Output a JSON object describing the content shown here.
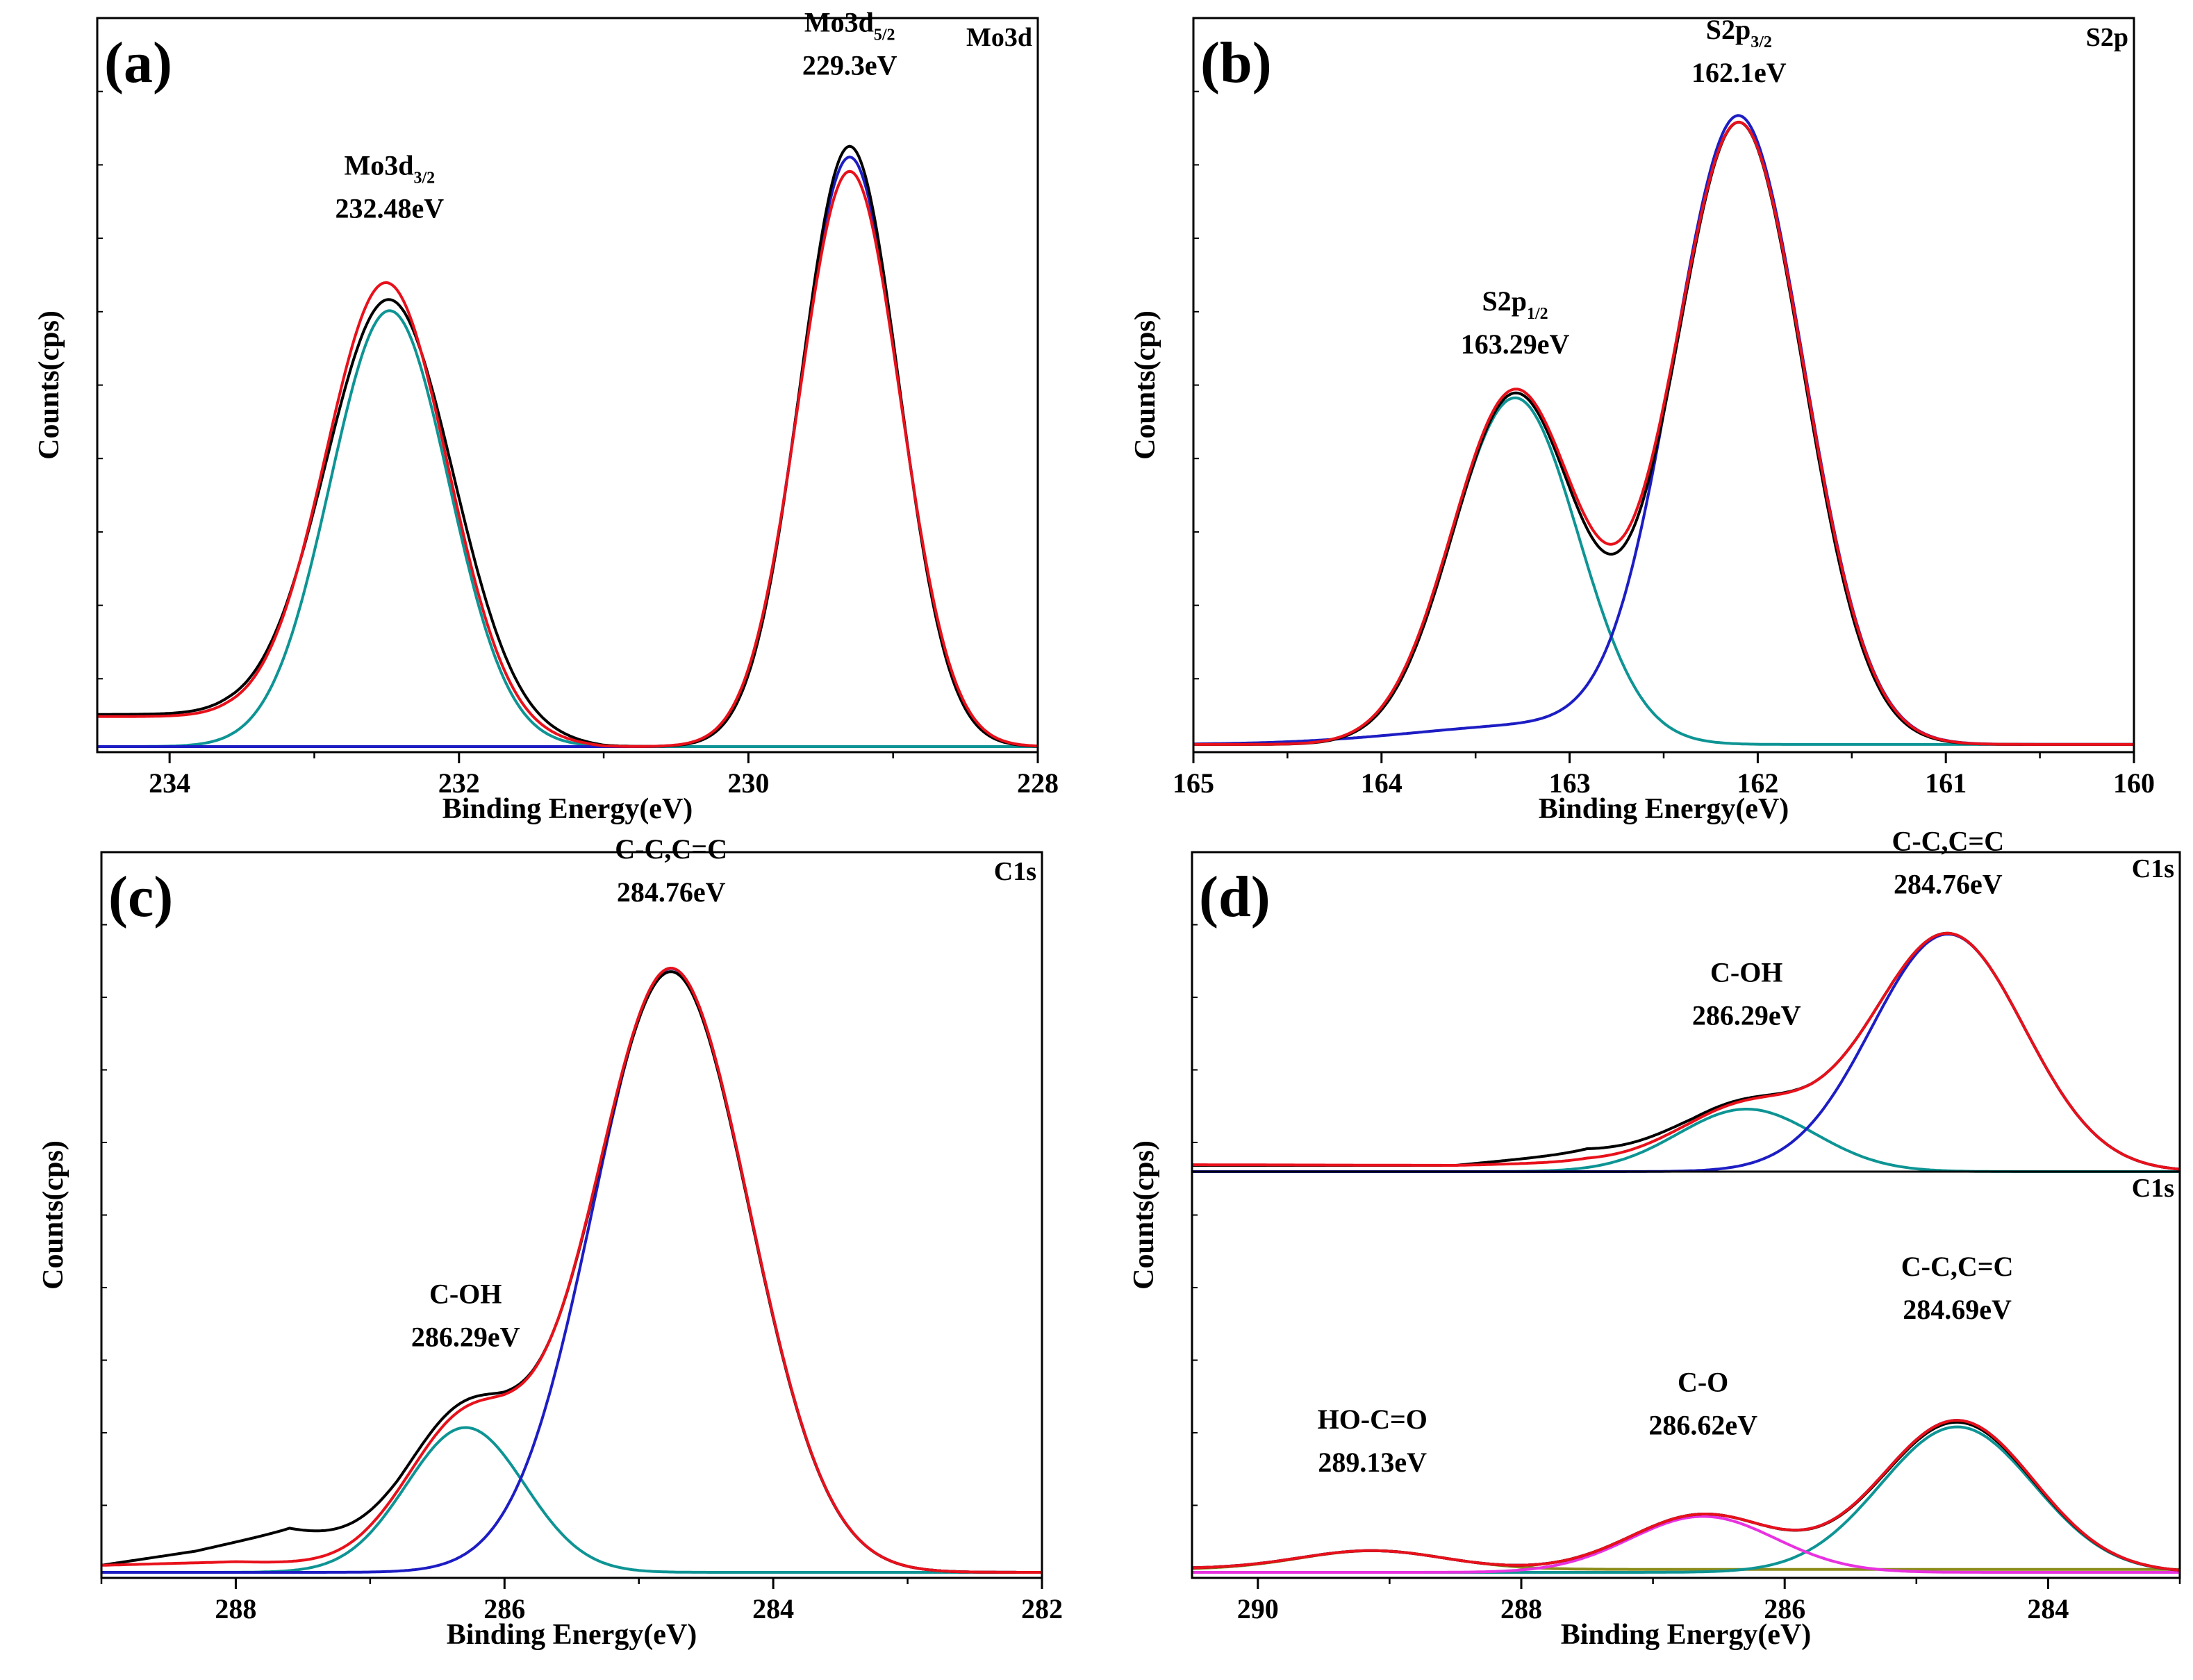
{
  "colors": {
    "measured": "#000000",
    "envelope": "#e8111b",
    "peak_a": "#1d1dc4",
    "peak_b": "#0e9494",
    "peak_c": "#e832e0",
    "baseline": "#8c8c1a"
  },
  "chart_data": [
    {
      "type": "line",
      "panel": "(a)",
      "corner_label": "Mo3d",
      "xlabel": "Binding Energy(eV)",
      "ylabel": "Counts(cps)",
      "xlim": [
        234.5,
        228
      ],
      "x_ticks": [
        "234",
        "232",
        "230",
        "228"
      ],
      "x_tick_values": [
        234,
        232,
        230,
        228
      ],
      "ylim": [
        0,
        1.0
      ],
      "annotations": [
        {
          "line1": "Mo3d",
          "sub": "3/2",
          "line2": "232.48eV",
          "x": 232.48,
          "y": 0.74
        },
        {
          "line1": "Mo3d",
          "sub": "5/2",
          "line2": "229.3eV",
          "x": 229.3,
          "y": 0.94
        }
      ],
      "series": [
        {
          "role": "measured",
          "peaks": [
            {
              "c": 232.48,
              "h": 0.6,
              "w": 0.44
            },
            {
              "c": 229.3,
              "h": 0.84,
              "w": 0.34
            }
          ],
          "baseline": [
            [
              234.5,
              0.045
            ],
            [
              233.6,
              0.045
            ],
            [
              231.0,
              0.0
            ],
            [
              228,
              0.0
            ]
          ]
        },
        {
          "role": "envelope",
          "peaks": [
            {
              "c": 232.5,
              "h": 0.625,
              "w": 0.42
            },
            {
              "c": 229.3,
              "h": 0.805,
              "w": 0.35
            }
          ],
          "baseline": [
            [
              234.5,
              0.042
            ],
            [
              233.6,
              0.042
            ],
            [
              231.0,
              0.0
            ],
            [
              228,
              0.0
            ]
          ]
        },
        {
          "role": "peak_a",
          "peaks": [
            {
              "c": 229.3,
              "h": 0.825,
              "w": 0.345
            }
          ],
          "baseline": []
        },
        {
          "role": "peak_b",
          "peaks": [
            {
              "c": 232.48,
              "h": 0.61,
              "w": 0.41
            }
          ],
          "baseline": []
        }
      ]
    },
    {
      "type": "line",
      "panel": "(b)",
      "corner_label": "S2p",
      "xlabel": "Binding Energy(eV)",
      "ylabel": "Counts(cps)",
      "xlim": [
        165,
        160
      ],
      "x_ticks": [
        "165",
        "164",
        "163",
        "162",
        "161",
        "160"
      ],
      "x_tick_values": [
        165,
        164,
        163,
        162,
        161,
        160
      ],
      "ylim": [
        0,
        1.0
      ],
      "annotations": [
        {
          "line1": "S2p",
          "sub": "1/2",
          "line2": "163.29eV",
          "x": 163.29,
          "y": 0.55
        },
        {
          "line1": "S2p",
          "sub": "3/2",
          "line2": "162.1eV",
          "x": 162.1,
          "y": 0.93
        }
      ],
      "series": [
        {
          "role": "measured",
          "peaks": [
            {
              "c": 163.29,
              "h": 0.49,
              "w": 0.33
            },
            {
              "c": 162.1,
              "h": 0.87,
              "w": 0.34
            }
          ],
          "baseline": [
            [
              165,
              0.003
            ],
            [
              160,
              0.003
            ]
          ]
        },
        {
          "role": "envelope",
          "peaks": [
            {
              "c": 163.29,
              "h": 0.495,
              "w": 0.335
            },
            {
              "c": 162.1,
              "h": 0.87,
              "w": 0.345
            }
          ],
          "baseline": [
            [
              165,
              0.003
            ],
            [
              160,
              0.003
            ]
          ]
        },
        {
          "role": "peak_a",
          "peaks": [
            {
              "c": 162.1,
              "h": 0.87,
              "w": 0.345
            },
            {
              "c": 163.1,
              "h": 0.028,
              "w": 0.7
            }
          ],
          "baseline": [
            [
              165,
              0.003
            ],
            [
              160,
              0.003
            ]
          ]
        },
        {
          "role": "peak_b",
          "peaks": [
            {
              "c": 163.29,
              "h": 0.485,
              "w": 0.335
            }
          ],
          "baseline": [
            [
              165,
              0.003
            ],
            [
              160,
              0.003
            ]
          ]
        }
      ]
    },
    {
      "type": "line",
      "panel": "(c)",
      "corner_label": "C1s",
      "xlabel": "Binding Energy(eV)",
      "ylabel": "Counts(cps)",
      "xlim": [
        289,
        282
      ],
      "x_ticks": [
        "288",
        "286",
        "284",
        "282"
      ],
      "x_tick_values": [
        288,
        286,
        284,
        282
      ],
      "ylim": [
        0,
        1.0
      ],
      "annotations": [
        {
          "line1": "C-C,C=C",
          "sub": "",
          "line2": "284.76eV",
          "x": 284.76,
          "y": 0.95
        },
        {
          "line1": "C-OH",
          "sub": "",
          "line2": "286.29eV",
          "x": 286.29,
          "y": 0.32
        }
      ],
      "series": [
        {
          "role": "measured",
          "peaks": [
            {
              "c": 284.76,
              "h": 0.85,
              "w": 0.58
            },
            {
              "c": 286.29,
              "h": 0.21,
              "w": 0.44
            }
          ],
          "baseline": [
            [
              289,
              0.01
            ],
            [
              288.3,
              0.03
            ],
            [
              287.6,
              0.06
            ],
            [
              286.8,
              0.02
            ],
            [
              286.0,
              0.0
            ],
            [
              282,
              0.0
            ]
          ]
        },
        {
          "role": "envelope",
          "peaks": [
            {
              "c": 284.76,
              "h": 0.855,
              "w": 0.58
            },
            {
              "c": 286.29,
              "h": 0.205,
              "w": 0.44
            }
          ],
          "baseline": [
            [
              289,
              0.01
            ],
            [
              288.0,
              0.015
            ],
            [
              287.0,
              0.01
            ],
            [
              286.0,
              0.0
            ],
            [
              282,
              0.0
            ]
          ]
        },
        {
          "role": "peak_a",
          "peaks": [
            {
              "c": 284.76,
              "h": 0.855,
              "w": 0.58
            }
          ],
          "baseline": []
        },
        {
          "role": "peak_b",
          "peaks": [
            {
              "c": 286.29,
              "h": 0.205,
              "w": 0.44
            }
          ],
          "baseline": []
        }
      ]
    },
    {
      "type": "line",
      "panel": "(d)",
      "corner_label": "C1s",
      "xlabel": "Binding Energy(eV)",
      "ylabel": "Counts(cps)",
      "xlim": [
        290.5,
        283
      ],
      "x_ticks": [
        "290",
        "288",
        "286",
        "284"
      ],
      "x_tick_values": [
        290,
        288,
        286,
        284
      ],
      "ylim": [
        0,
        1.0
      ],
      "subplots": [
        {
          "corner_label": "C1s",
          "annotations": [
            {
              "line1": "C-C,C=C",
              "sub": "",
              "line2": "284.76eV",
              "x": 284.76,
              "y": 0.89
            },
            {
              "line1": "C-OH",
              "sub": "",
              "line2": "286.29eV",
              "x": 286.29,
              "y": 0.47
            }
          ],
          "series": [
            {
              "role": "measured",
              "peaks": [
                {
                  "c": 284.76,
                  "h": 0.76,
                  "w": 0.58
                },
                {
                  "c": 286.29,
                  "h": 0.2,
                  "w": 0.52
                }
              ],
              "baseline": [
                [
                  290.5,
                  0.02
                ],
                [
                  288.5,
                  0.02
                ],
                [
                  287.5,
                  0.06
                ],
                [
                  286.7,
                  0.02
                ],
                [
                  285.8,
                  0.0
                ],
                [
                  283,
                  0.0
                ]
              ]
            },
            {
              "role": "envelope",
              "peaks": [
                {
                  "c": 284.76,
                  "h": 0.76,
                  "w": 0.58
                },
                {
                  "c": 286.29,
                  "h": 0.2,
                  "w": 0.52
                }
              ],
              "baseline": [
                [
                  290.5,
                  0.022
                ],
                [
                  288.5,
                  0.02
                ],
                [
                  287.5,
                  0.03
                ],
                [
                  286.7,
                  0.01
                ],
                [
                  285.8,
                  0.0
                ],
                [
                  283,
                  0.0
                ]
              ]
            },
            {
              "role": "peak_a",
              "peaks": [
                {
                  "c": 284.76,
                  "h": 0.76,
                  "w": 0.58
                }
              ],
              "baseline": []
            },
            {
              "role": "peak_b",
              "peaks": [
                {
                  "c": 286.29,
                  "h": 0.2,
                  "w": 0.52
                }
              ],
              "baseline": []
            }
          ]
        },
        {
          "corner_label": "C1s",
          "annotations": [
            {
              "line1": "C-C,C=C",
              "sub": "",
              "line2": "284.69eV",
              "x": 284.69,
              "y": 0.68
            },
            {
              "line1": "C-O",
              "sub": "",
              "line2": "286.62eV",
              "x": 286.62,
              "y": 0.37
            },
            {
              "line1": "HO-C=O",
              "sub": "",
              "line2": "289.13eV",
              "x": 289.13,
              "y": 0.27
            }
          ],
          "series": [
            {
              "role": "measured",
              "peaks": [
                {
                  "c": 284.69,
                  "h": 0.4,
                  "w": 0.58
                },
                {
                  "c": 286.62,
                  "h": 0.15,
                  "w": 0.55
                },
                {
                  "c": 289.13,
                  "h": 0.05,
                  "w": 0.55
                }
              ],
              "baseline": [
                [
                  290.5,
                  0.01
                ],
                [
                  283,
                  0.0
                ]
              ]
            },
            {
              "role": "envelope",
              "peaks": [
                {
                  "c": 284.69,
                  "h": 0.405,
                  "w": 0.58
                },
                {
                  "c": 286.62,
                  "h": 0.15,
                  "w": 0.55
                },
                {
                  "c": 289.13,
                  "h": 0.05,
                  "w": 0.55
                }
              ],
              "baseline": [
                [
                  290.5,
                  0.01
                ],
                [
                  283,
                  0.0
                ]
              ]
            },
            {
              "role": "peak_a",
              "peaks": [
                {
                  "c": 284.69,
                  "h": 0.405,
                  "w": 0.58
                },
                {
                  "c": 286.62,
                  "h": 0.15,
                  "w": 0.55
                },
                {
                  "c": 289.13,
                  "h": 0.05,
                  "w": 0.55
                }
              ],
              "baseline": [
                [
                  290.5,
                  0.01
                ],
                [
                  283,
                  0.0
                ]
              ]
            },
            {
              "role": "peak_b",
              "peaks": [
                {
                  "c": 284.69,
                  "h": 0.39,
                  "w": 0.58
                }
              ],
              "baseline": []
            },
            {
              "role": "peak_c",
              "peaks": [
                {
                  "c": 286.62,
                  "h": 0.15,
                  "w": 0.55
                }
              ],
              "baseline": []
            },
            {
              "role": "baseline",
              "peaks": [
                {
                  "c": 289.13,
                  "h": 0.05,
                  "w": 0.55
                }
              ],
              "baseline": [
                [
                  290.5,
                  0.008
                ],
                [
                  283,
                  0.008
                ]
              ]
            }
          ]
        }
      ]
    }
  ]
}
